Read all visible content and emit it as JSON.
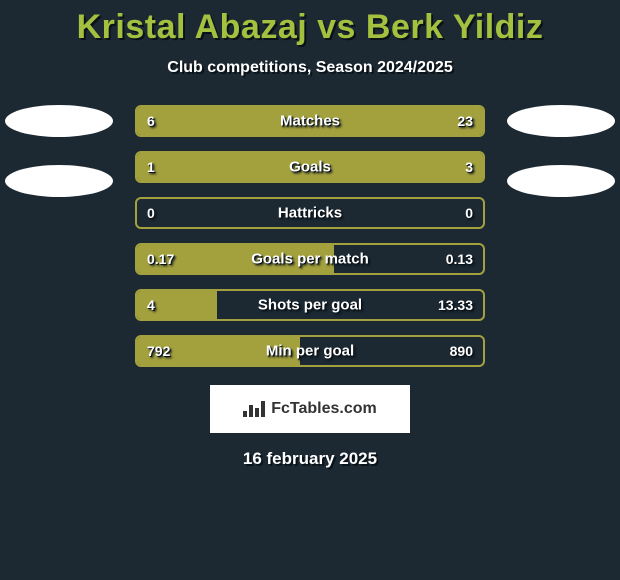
{
  "title": "Kristal Abazaj vs Berk Yildiz",
  "subtitle": "Club competitions, Season 2024/2025",
  "date": "16 february 2025",
  "brand": "FcTables.com",
  "colors": {
    "background": "#1c2933",
    "accent": "#a3c13e",
    "bar_border": "#a3a13e",
    "bar_fill": "#a3a13e",
    "text": "#ffffff",
    "shadow": "#0a1218",
    "brand_bg": "#ffffff",
    "brand_text": "#333333"
  },
  "logos": {
    "left_count": 2,
    "right_count": 2
  },
  "bars": [
    {
      "label": "Matches",
      "left": "6",
      "right": "23",
      "left_pct": 21,
      "right_pct": 79
    },
    {
      "label": "Goals",
      "left": "1",
      "right": "3",
      "left_pct": 25,
      "right_pct": 75
    },
    {
      "label": "Hattricks",
      "left": "0",
      "right": "0",
      "left_pct": 0,
      "right_pct": 0
    },
    {
      "label": "Goals per match",
      "left": "0.17",
      "right": "0.13",
      "left_pct": 57,
      "right_pct": 0
    },
    {
      "label": "Shots per goal",
      "left": "4",
      "right": "13.33",
      "left_pct": 23,
      "right_pct": 0
    },
    {
      "label": "Min per goal",
      "left": "792",
      "right": "890",
      "left_pct": 47,
      "right_pct": 0
    }
  ]
}
